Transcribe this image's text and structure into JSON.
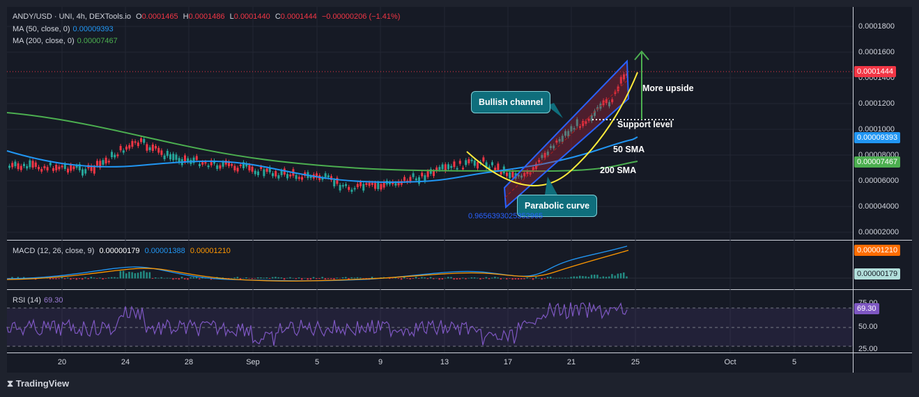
{
  "header": {
    "symbol": "ANDY/USD · UNI, 4h, DEXTools.io",
    "open_label": "O",
    "open": "0.0001465",
    "high_label": "H",
    "high": "0.0001486",
    "low_label": "L",
    "low": "0.0001440",
    "close_label": "C",
    "close": "0.0001444",
    "change": "−0.00000206 (−1.41%)"
  },
  "ma50": {
    "label": "MA (50, close, 0)",
    "value": "0.00009393"
  },
  "ma200": {
    "label": "MA (200, close, 0)",
    "value": "0.00007467"
  },
  "price_axis": {
    "ticks": [
      "0.0001800",
      "0.0001600",
      "0.0001400",
      "0.0001200",
      "0.0001000",
      "0.00008000",
      "0.00006000",
      "0.00004000",
      "0.00002000"
    ],
    "badges": {
      "last": "0.0001444",
      "ma50": "0.00009393",
      "ma200": "0.00007467"
    }
  },
  "annotations": {
    "bullish_channel": "Bullish channel",
    "parabolic_curve": "Parabolic curve",
    "more_upside": "More upside",
    "support_level": "Support level",
    "sma50": "50 SMA",
    "sma200": "200 SMA",
    "fib": "0.9656393025352965"
  },
  "macd": {
    "label": "MACD (12, 26, close, 9)",
    "hist": "0.00000179",
    "macd": "0.00001388",
    "signal": "0.00001210",
    "badges": {
      "signal": "0.00001210",
      "hist": "0.00000179"
    }
  },
  "rsi": {
    "label": "RSI (14)",
    "value": "69.30",
    "ticks": [
      "75.00",
      "50.00",
      "25.00"
    ],
    "badge": "69.30"
  },
  "time_axis": [
    "20",
    "24",
    "28",
    "Sep",
    "5",
    "9",
    "13",
    "17",
    "21",
    "25",
    "Oct",
    "5"
  ],
  "brand": "TradingView",
  "colors": {
    "up": "#26a69a",
    "down": "#f23645",
    "ma50": "#2196f3",
    "ma200": "#4caf50",
    "rsi": "#7e57c2",
    "macd_signal": "#ff9800"
  }
}
